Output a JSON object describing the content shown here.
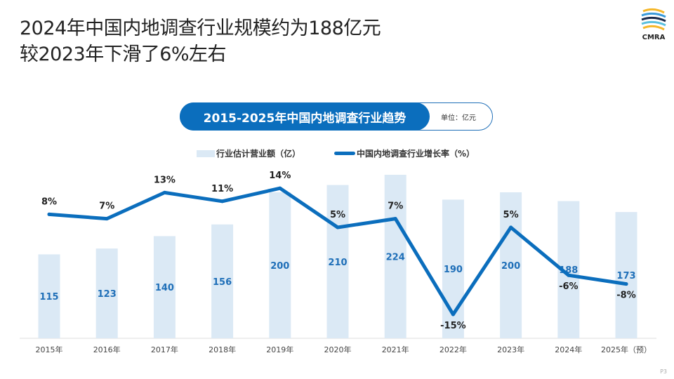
{
  "header": {
    "title_line1": "2024年中国内地调查行业规模约为188亿元",
    "title_line2": "较2023年下滑了6%左右",
    "logo_text": "CMRA"
  },
  "chart_header": {
    "title": "2015-2025年中国内地调查行业趋势",
    "unit": "单位：亿元"
  },
  "page_number": "P3",
  "colors": {
    "bar": "#dbe9f5",
    "line": "#0b6ebd",
    "bar_label": "#1f6fb8"
  },
  "chart_data": {
    "type": "bar+line",
    "categories": [
      "2015年",
      "2016年",
      "2017年",
      "2018年",
      "2019年",
      "2020年",
      "2021年",
      "2022年",
      "2023年",
      "2024年",
      "2025年（预）"
    ],
    "series": [
      {
        "name": "行业估计营业额（亿）",
        "type": "bar",
        "values": [
          115,
          123,
          140,
          156,
          200,
          210,
          224,
          190,
          200,
          188,
          173
        ],
        "labels": [
          "115",
          "123",
          "140",
          "156",
          "200",
          "210",
          "224",
          "190",
          "200",
          "188",
          "173"
        ]
      },
      {
        "name": "中国内地调查行业增长率（%）",
        "type": "line",
        "values": [
          8,
          7,
          13,
          11,
          14,
          5,
          7,
          -15,
          5,
          -6,
          -8
        ],
        "labels": [
          "8%",
          "7%",
          "13%",
          "11%",
          "14%",
          "5%",
          "7%",
          "-15%",
          "5%",
          "-6%",
          "-8%"
        ]
      }
    ],
    "legend": "top",
    "grid": false
  }
}
